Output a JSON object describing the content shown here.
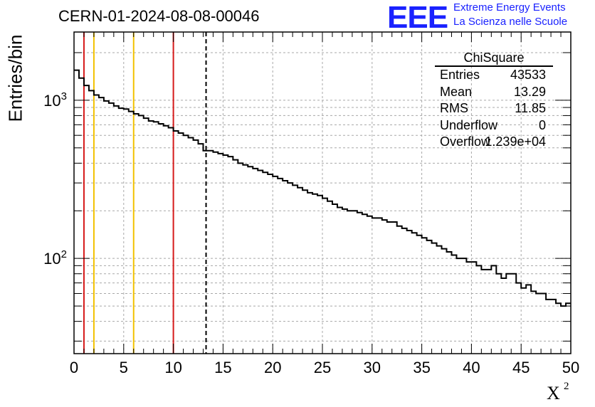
{
  "chart_data": {
    "type": "histogram",
    "title": "CERN-01-2024-08-08-00046",
    "ylabel": "Entries/bin",
    "xlabel": "X",
    "xlabel_superscript": "2",
    "xlim": [
      0,
      50
    ],
    "ylim": [
      25,
      2700
    ],
    "y_scale": "log",
    "grid": true,
    "x_ticks": [
      "0",
      "5",
      "10",
      "15",
      "20",
      "25",
      "30",
      "35",
      "40",
      "45",
      "50"
    ],
    "y_tick_labels": [
      {
        "base": "10",
        "exp": "2",
        "value": 100
      },
      {
        "base": "10",
        "exp": "3",
        "value": 1000
      }
    ],
    "bin_width": 0.5,
    "counts": [
      1550,
      1380,
      1240,
      1150,
      1080,
      1040,
      990,
      960,
      920,
      890,
      880,
      850,
      820,
      800,
      770,
      740,
      730,
      710,
      690,
      670,
      640,
      620,
      600,
      580,
      560,
      530,
      480,
      480,
      470,
      460,
      450,
      440,
      420,
      400,
      390,
      380,
      370,
      360,
      350,
      340,
      330,
      320,
      310,
      300,
      290,
      280,
      270,
      260,
      255,
      250,
      240,
      230,
      220,
      210,
      205,
      200,
      200,
      195,
      190,
      185,
      180,
      180,
      175,
      170,
      170,
      160,
      155,
      150,
      145,
      140,
      135,
      130,
      125,
      120,
      115,
      110,
      105,
      100,
      100,
      95,
      95,
      90,
      85,
      85,
      90,
      80,
      75,
      80,
      80,
      70,
      65,
      68,
      62,
      60,
      60,
      55,
      55,
      52,
      50,
      52
    ],
    "vertical_lines": [
      {
        "x": 1,
        "color": "#d61a1a",
        "style": "solid"
      },
      {
        "x": 2,
        "color": "#f2c200",
        "style": "solid"
      },
      {
        "x": 6,
        "color": "#f2c200",
        "style": "solid"
      },
      {
        "x": 10,
        "color": "#d61a1a",
        "style": "solid"
      },
      {
        "x": 13.29,
        "color": "#000000",
        "style": "dashed"
      }
    ],
    "stats_box": {
      "title": "ChiSquare",
      "rows": [
        {
          "key": "Entries",
          "value": "43533"
        },
        {
          "key": "Mean",
          "value": "13.29"
        },
        {
          "key": "RMS",
          "value": "11.85"
        },
        {
          "key": "Underflow",
          "value": "0"
        },
        {
          "key": "Overflow",
          "value": "1.239e+04"
        }
      ]
    }
  },
  "logo": {
    "text": "EEE",
    "line1": "Extreme Energy Events",
    "line2": "La Scienza nelle Scuole",
    "color": "#1a22ff"
  }
}
